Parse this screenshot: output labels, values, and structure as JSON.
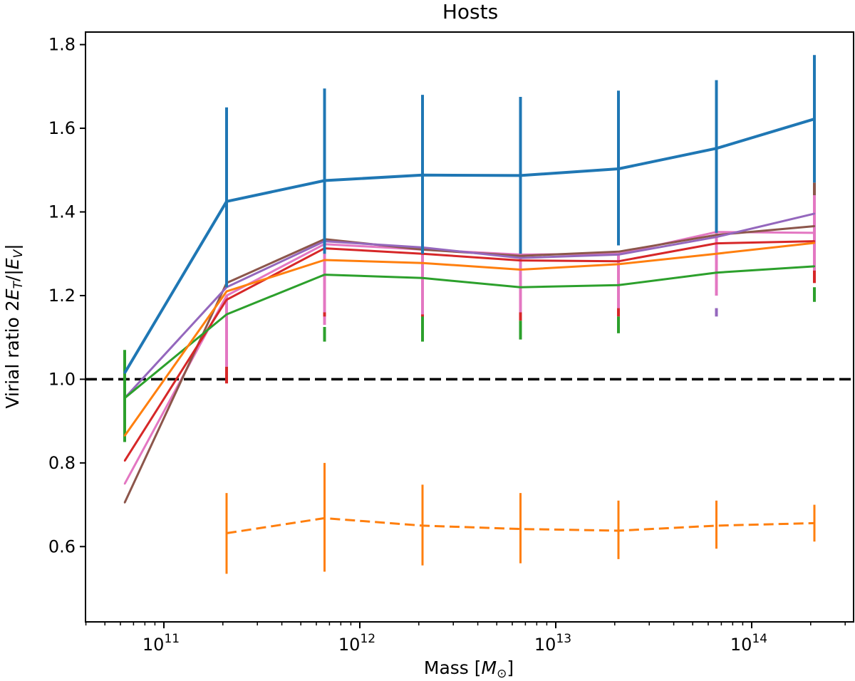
{
  "chart_data": {
    "type": "line",
    "title": "Hosts",
    "xlabel": "Mass [M_⊙]",
    "ylabel": "Virial ratio 2E_T/|E_V|",
    "xscale": "log",
    "xlim_log10": [
      10.6,
      14.52
    ],
    "ylim": [
      0.42,
      1.83
    ],
    "x_tick_labels": [
      {
        "base": "10",
        "exp": "11",
        "log10": 11
      },
      {
        "base": "10",
        "exp": "12",
        "log10": 12
      },
      {
        "base": "10",
        "exp": "13",
        "log10": 13
      },
      {
        "base": "10",
        "exp": "14",
        "log10": 14
      }
    ],
    "y_ticks": [
      {
        "value": 0.6,
        "label": "0.6"
      },
      {
        "value": 0.8,
        "label": "0.8"
      },
      {
        "value": 1.0,
        "label": "1.0"
      },
      {
        "value": 1.2,
        "label": "1.2"
      },
      {
        "value": 1.4,
        "label": "1.4"
      },
      {
        "value": 1.6,
        "label": "1.6"
      },
      {
        "value": 1.8,
        "label": "1.8"
      }
    ],
    "reference_line": {
      "y": 1.0,
      "style": "dashed",
      "color": "#000000"
    },
    "x_log10": [
      10.8,
      11.32,
      11.82,
      12.32,
      12.82,
      13.32,
      13.82,
      14.32
    ],
    "series": [
      {
        "name": "blue",
        "color": "#1f77b4",
        "style": "solid",
        "width": 4,
        "values": [
          1.015,
          1.425,
          1.475,
          1.488,
          1.487,
          1.503,
          1.552,
          1.622
        ],
        "errors": [
          [
            1.015,
            1.015
          ],
          [
            1.22,
            1.65
          ],
          [
            1.3,
            1.695
          ],
          [
            1.3,
            1.68
          ],
          [
            1.3,
            1.675
          ],
          [
            1.32,
            1.69
          ],
          [
            1.35,
            1.715
          ],
          [
            1.47,
            1.775
          ]
        ]
      },
      {
        "name": "orange",
        "color": "#ff7f0e",
        "style": "solid",
        "width": 3,
        "values": [
          0.865,
          1.21,
          1.285,
          1.278,
          1.262,
          1.275,
          1.3,
          1.326
        ],
        "errors": null
      },
      {
        "name": "green",
        "color": "#2ca02c",
        "style": "solid",
        "width": 3,
        "values": [
          0.955,
          1.155,
          1.25,
          1.242,
          1.22,
          1.225,
          1.255,
          1.27
        ],
        "errors": [
          [
            0.85,
            1.07
          ],
          [
            1.16,
            1.16
          ],
          [
            1.09,
            1.125
          ],
          [
            1.09,
            1.15
          ],
          [
            1.095,
            1.14
          ],
          [
            1.11,
            1.15
          ],
          [
            1.255,
            1.255
          ],
          [
            1.185,
            1.22
          ]
        ]
      },
      {
        "name": "red",
        "color": "#d62728",
        "style": "solid",
        "width": 3,
        "values": [
          0.805,
          1.19,
          1.313,
          1.3,
          1.284,
          1.282,
          1.325,
          1.33
        ],
        "errors": [
          [
            0.805,
            0.805
          ],
          [
            0.99,
            1.03
          ],
          [
            1.15,
            1.16
          ],
          [
            1.13,
            1.155
          ],
          [
            1.14,
            1.16
          ],
          [
            1.15,
            1.17
          ],
          [
            1.325,
            1.325
          ],
          [
            1.23,
            1.26
          ]
        ]
      },
      {
        "name": "purple",
        "color": "#9467bd",
        "style": "solid",
        "width": 3,
        "values": [
          0.955,
          1.22,
          1.33,
          1.315,
          1.29,
          1.298,
          1.34,
          1.396
        ],
        "errors": [
          [
            0.955,
            0.955
          ],
          [
            1.22,
            1.22
          ],
          [
            1.33,
            1.33
          ],
          [
            1.315,
            1.315
          ],
          [
            1.29,
            1.29
          ],
          [
            1.298,
            1.298
          ],
          [
            1.15,
            1.17
          ],
          [
            1.396,
            1.396
          ]
        ]
      },
      {
        "name": "brown",
        "color": "#8c564b",
        "style": "solid",
        "width": 3,
        "values": [
          0.705,
          1.23,
          1.335,
          1.31,
          1.295,
          1.305,
          1.345,
          1.366
        ],
        "errors": [
          [
            0.705,
            0.705
          ],
          [
            1.23,
            1.23
          ],
          [
            1.335,
            1.335
          ],
          [
            1.31,
            1.31
          ],
          [
            1.295,
            1.295
          ],
          [
            1.305,
            1.305
          ],
          [
            1.345,
            1.345
          ],
          [
            1.44,
            1.47
          ]
        ]
      },
      {
        "name": "pink",
        "color": "#e377c2",
        "style": "solid",
        "width": 3,
        "values": [
          0.75,
          1.2,
          1.323,
          1.31,
          1.298,
          1.3,
          1.352,
          1.35
        ],
        "errors": [
          [
            0.75,
            0.75
          ],
          [
            1.03,
            1.2
          ],
          [
            1.13,
            1.32
          ],
          [
            1.15,
            1.31
          ],
          [
            1.16,
            1.3
          ],
          [
            1.17,
            1.3
          ],
          [
            1.2,
            1.39
          ],
          [
            1.26,
            1.44
          ]
        ]
      },
      {
        "name": "orange-dashed",
        "color": "#ff7f0e",
        "style": "dashed",
        "width": 3,
        "values": [
          null,
          0.632,
          0.668,
          0.65,
          0.642,
          0.638,
          0.65,
          0.656
        ],
        "errors": [
          null,
          [
            0.535,
            0.728
          ],
          [
            0.54,
            0.8
          ],
          [
            0.555,
            0.748
          ],
          [
            0.56,
            0.728
          ],
          [
            0.57,
            0.71
          ],
          [
            0.595,
            0.71
          ],
          [
            0.612,
            0.7
          ]
        ]
      }
    ]
  }
}
